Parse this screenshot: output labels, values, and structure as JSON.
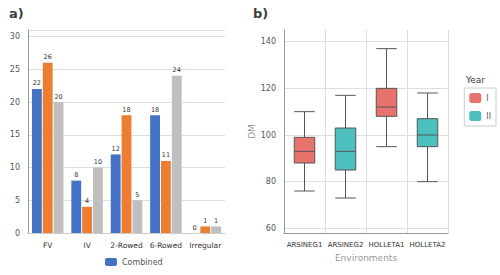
{
  "chart_data": [
    {
      "type": "bar",
      "title": "a)",
      "categories": [
        "FV",
        "IV",
        "2-Rowed",
        "6-Rowed",
        "Irregular"
      ],
      "series": [
        {
          "name": "Combined",
          "color": "#4472C4",
          "values": [
            22,
            8,
            12,
            18,
            0
          ]
        },
        {
          "color": "#ED7D31",
          "values": [
            26,
            4,
            18,
            11,
            1
          ]
        },
        {
          "color": "#BFBFBF",
          "values": [
            20,
            10,
            5,
            24,
            1
          ]
        }
      ],
      "ylim": [
        0,
        31
      ],
      "yticks": [
        0,
        5,
        10,
        15,
        20,
        25,
        30
      ],
      "grid": true,
      "data_labels": true,
      "legend": "bottom"
    },
    {
      "type": "boxplot",
      "title": "b)",
      "xlabel": "Environments",
      "ylabel": "DM",
      "legend_title": "Year",
      "categories": [
        "ARSINEG1",
        "ARSINEG2",
        "HOLLETA1",
        "HOLLETA2"
      ],
      "series": [
        {
          "name": "I",
          "color": "#E8736C",
          "values": [
            [
              76,
              88,
              93,
              99,
              110
            ],
            null,
            [
              95,
              108,
              112,
              120,
              137
            ],
            null
          ]
        },
        {
          "name": "II",
          "color": "#4DBFBF",
          "values": [
            null,
            [
              73,
              85,
              93,
              103,
              117
            ],
            null,
            [
              80,
              95,
              100,
              107,
              118
            ]
          ]
        }
      ],
      "ylim": [
        58,
        145
      ],
      "yticks": [
        60,
        80,
        100,
        120,
        140
      ],
      "grid": true,
      "legend": "right"
    }
  ]
}
